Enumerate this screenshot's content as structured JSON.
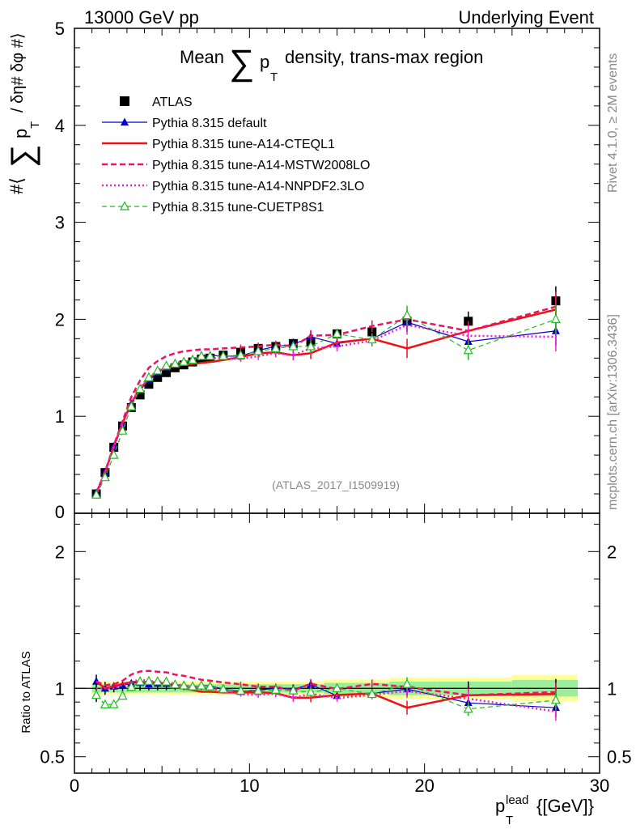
{
  "header": {
    "left": "13000 GeV pp",
    "right": "Underlying Event",
    "side_rivet": "Rivet 4.1.0, ≥ 2M events",
    "side_mcplots": "mcplots.cern.ch [arXiv:1306.3436]",
    "watermark": "(ATLAS_2017_I1509919)"
  },
  "chart_data": {
    "type": "line",
    "title_pre": "Mean",
    "title_sym": "∑",
    "title_p": "p",
    "title_sub": "T",
    "title_post": "density, trans-max region",
    "ylabel_pre": "#⟨",
    "ylabel_sym": "∑",
    "ylabel_p": "p",
    "ylabel_sub": "T",
    "ylabel_post": "/ δη# δφ #⟩",
    "xlabel_p": "p",
    "xlabel_sup": "lead",
    "xlabel_sub": "T",
    "xlabel_post": "{[GeV]}",
    "ratio_ylabel": "Ratio to ATLAS",
    "xlim": [
      0,
      30
    ],
    "ylim": [
      0,
      5
    ],
    "ratio_ylim": [
      0.38,
      2.28
    ],
    "xticks": [
      "0",
      "10",
      "20",
      "30"
    ],
    "yticks": [
      "0",
      "1",
      "2",
      "3",
      "4",
      "5"
    ],
    "ratio_yticks": [
      "0.5",
      "1",
      "2"
    ],
    "x": [
      1.25,
      1.75,
      2.25,
      2.75,
      3.25,
      3.75,
      4.25,
      4.75,
      5.25,
      5.75,
      6.25,
      6.75,
      7.25,
      7.75,
      8.5,
      9.5,
      10.5,
      11.5,
      12.5,
      13.5,
      15,
      17,
      19,
      22.5,
      27.5
    ],
    "series": [
      {
        "name": "ATLAS",
        "values": [
          0.2,
          0.42,
          0.68,
          0.9,
          1.09,
          1.22,
          1.33,
          1.4,
          1.45,
          1.5,
          1.53,
          1.56,
          1.59,
          1.6,
          1.63,
          1.66,
          1.7,
          1.72,
          1.75,
          1.77,
          1.85,
          1.87,
          1.98,
          1.98,
          2.19
        ]
      },
      {
        "name": "Pythia 8.315 default",
        "values": [
          0.21,
          0.42,
          0.69,
          0.92,
          1.13,
          1.27,
          1.37,
          1.45,
          1.5,
          1.54,
          1.56,
          1.58,
          1.62,
          1.63,
          1.62,
          1.62,
          1.68,
          1.72,
          1.74,
          1.82,
          1.75,
          1.8,
          1.97,
          1.77,
          1.88
        ]
      },
      {
        "name": "Pythia 8.315 tune-A14-CTEQL1",
        "values": [
          0.21,
          0.42,
          0.69,
          0.93,
          1.14,
          1.28,
          1.39,
          1.46,
          1.5,
          1.52,
          1.53,
          1.54,
          1.55,
          1.56,
          1.58,
          1.61,
          1.65,
          1.66,
          1.63,
          1.65,
          1.76,
          1.8,
          1.7,
          1.88,
          2.1
        ]
      },
      {
        "name": "Pythia 8.315 tune-A14-MSTW2008LO",
        "values": [
          0.21,
          0.43,
          0.7,
          0.95,
          1.2,
          1.37,
          1.5,
          1.57,
          1.62,
          1.65,
          1.67,
          1.68,
          1.69,
          1.69,
          1.7,
          1.71,
          1.72,
          1.74,
          1.72,
          1.83,
          1.84,
          1.93,
          2.0,
          1.88,
          2.13
        ]
      },
      {
        "name": "Pythia 8.315 tune-A14-NNPDF2.3LO",
        "values": [
          0.2,
          0.42,
          0.68,
          0.92,
          1.14,
          1.3,
          1.4,
          1.47,
          1.52,
          1.55,
          1.56,
          1.58,
          1.59,
          1.6,
          1.6,
          1.59,
          1.62,
          1.65,
          1.63,
          1.7,
          1.72,
          1.78,
          1.94,
          1.83,
          1.82
        ]
      },
      {
        "name": "Pythia 8.315 tune-CUETP8S1",
        "values": [
          0.19,
          0.37,
          0.6,
          0.85,
          1.1,
          1.28,
          1.4,
          1.47,
          1.52,
          1.54,
          1.56,
          1.58,
          1.62,
          1.62,
          1.62,
          1.63,
          1.67,
          1.7,
          1.72,
          1.72,
          1.85,
          1.79,
          2.04,
          1.68,
          2.0
        ]
      }
    ],
    "errors": [
      0.02,
      0.02,
      0.02,
      0.02,
      0.02,
      0.02,
      0.02,
      0.02,
      0.02,
      0.02,
      0.02,
      0.02,
      0.02,
      0.02,
      0.02,
      0.03,
      0.04,
      0.04,
      0.05,
      0.06,
      0.05,
      0.06,
      0.1,
      0.1,
      0.15
    ],
    "band": [
      0.03,
      0.03,
      0.03,
      0.03,
      0.03,
      0.03,
      0.03,
      0.03,
      0.03,
      0.03,
      0.03,
      0.03,
      0.03,
      0.03,
      0.03,
      0.03,
      0.03,
      0.03,
      0.03,
      0.03,
      0.04,
      0.04,
      0.05,
      0.05,
      0.06
    ],
    "colors": [
      "#000000",
      "#0000cc",
      "#ee1111",
      "#ee1166",
      "#ee22cc",
      "#22bb22"
    ]
  }
}
